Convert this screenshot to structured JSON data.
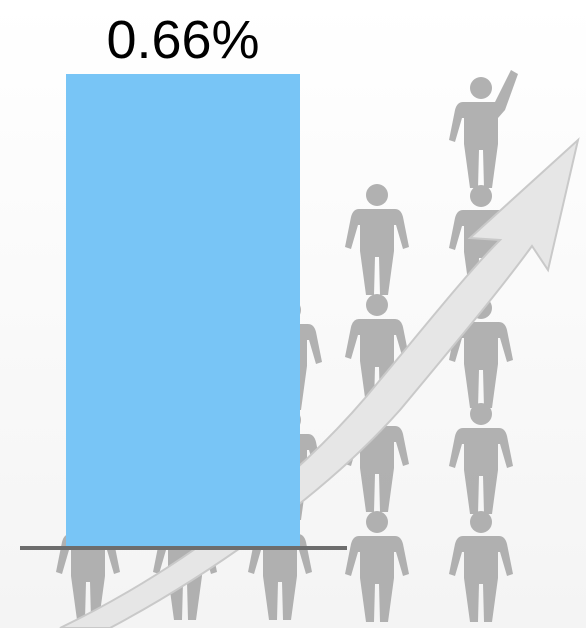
{
  "colors": {
    "bar": "#78C5F6",
    "baseline": "#6D6D6D",
    "figure": "#A9A9A9",
    "arrow": "#E6E6E6"
  },
  "background": {
    "description_icon": "people-growth-arrow-icon"
  },
  "chart_data": {
    "type": "bar",
    "categories": [
      ""
    ],
    "values": [
      0.66
    ],
    "value_labels": [
      "0.66%"
    ],
    "ylim": [
      0,
      0.66
    ],
    "title": "",
    "xlabel": "",
    "ylabel": "",
    "grid": false,
    "legend": "none"
  }
}
